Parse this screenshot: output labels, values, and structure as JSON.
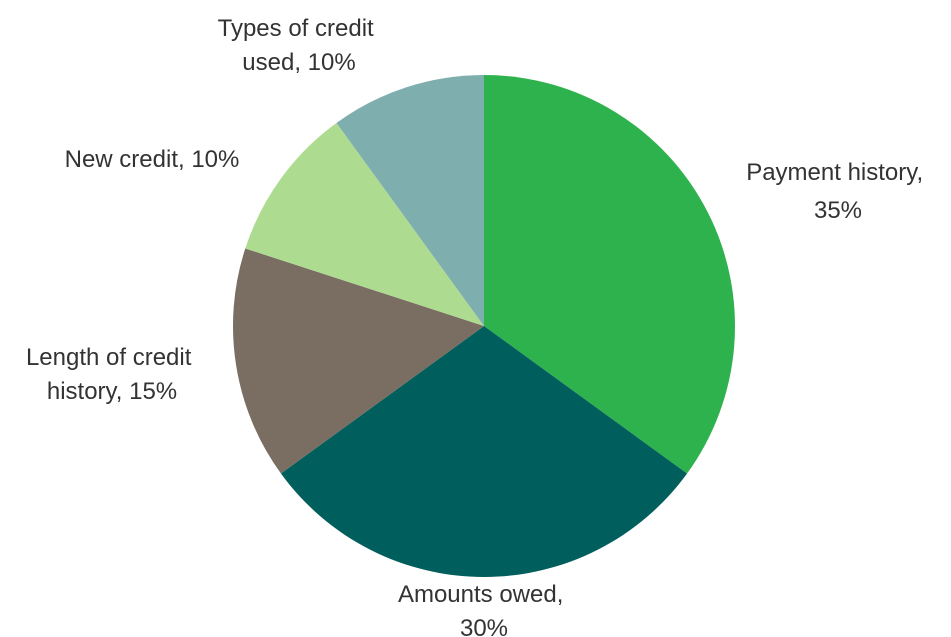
{
  "chart_data": {
    "type": "pie",
    "title": "",
    "slices": [
      {
        "label": [
          "Payment history,",
          "35%"
        ],
        "category": "Payment history",
        "value": 35,
        "color": "#2EB24D"
      },
      {
        "label": [
          "Amounts owed,",
          "30%"
        ],
        "category": "Amounts owed",
        "value": 30,
        "color": "#005E5D"
      },
      {
        "label": [
          "Length of credit",
          "history, 15%"
        ],
        "category": "Length of credit history",
        "value": 15,
        "color": "#7A6D62"
      },
      {
        "label": [
          "New credit, 10%"
        ],
        "category": "New credit",
        "value": 10,
        "color": "#ADDC91"
      },
      {
        "label": [
          "Types of credit",
          "used, 10%"
        ],
        "category": "Types of credit used",
        "value": 10,
        "color": "#7FAEAE"
      }
    ],
    "start_angle": "12 o'clock",
    "direction": "clockwise",
    "legend": "none"
  }
}
